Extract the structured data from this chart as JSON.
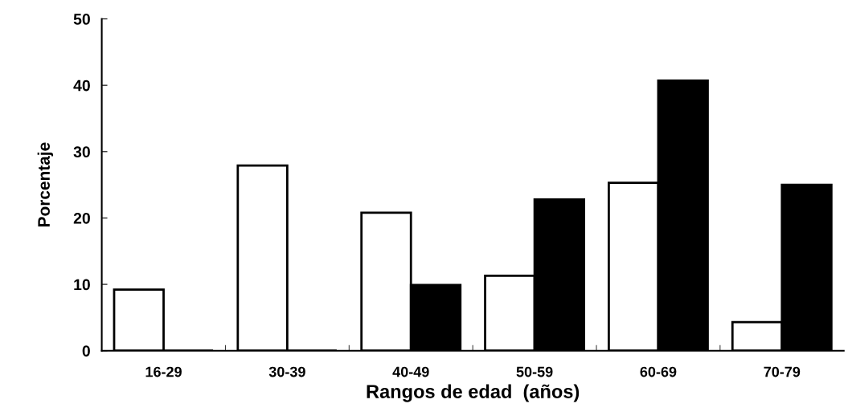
{
  "chart_data": {
    "type": "bar",
    "xlabel": "Rangos de edad  (años)",
    "ylabel": "Porcentaje",
    "categories": [
      "16-29",
      "30-39",
      "40-49",
      "50-59",
      "60-69",
      "70-79"
    ],
    "series": [
      {
        "color": "#ffffff",
        "values": [
          9.2,
          27.9,
          20.8,
          11.3,
          25.3,
          4.3
        ]
      },
      {
        "color": "#000000",
        "values": [
          0,
          0,
          9.9,
          22.8,
          40.7,
          25.0
        ]
      }
    ],
    "ylim": [
      0,
      50
    ],
    "yticks": [
      0,
      10,
      20,
      30,
      40,
      50
    ],
    "grid": false,
    "legend": false
  }
}
